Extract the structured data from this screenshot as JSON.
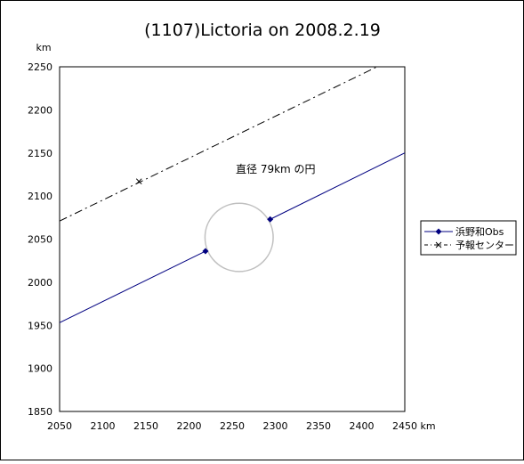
{
  "chart_data": {
    "type": "scatter",
    "title": "(1107)Lictoria on 2008.2.19",
    "xlabel": "km",
    "ylabel": "km",
    "xlim": [
      2050,
      2450
    ],
    "ylim": [
      1850,
      2250
    ],
    "xticks": [
      2050,
      2100,
      2150,
      2200,
      2250,
      2300,
      2350,
      2400,
      2450
    ],
    "yticks": [
      1850,
      1900,
      1950,
      2000,
      2050,
      2100,
      2150,
      2200,
      2250
    ],
    "grid": false,
    "legend_position": "right",
    "annotation": "直径 79km の円",
    "circle": {
      "center": [
        2258,
        2052
      ],
      "diameter": 79,
      "color": "#c0c0c0"
    },
    "series": [
      {
        "name": "浜野和Obs",
        "color": "#000080",
        "line_style": "solid",
        "marker": "diamond",
        "segments": [
          {
            "x": [
              2050,
              2219
            ],
            "y": [
              1953,
              2036
            ]
          },
          {
            "x": [
              2294,
              2450
            ],
            "y": [
              2073,
              2150
            ]
          }
        ],
        "markers": [
          {
            "x": 2219,
            "y": 2036
          },
          {
            "x": 2294,
            "y": 2073
          }
        ]
      },
      {
        "name": "予報センター",
        "color": "#000000",
        "line_style": "dashdot",
        "marker": "x",
        "segments": [
          {
            "x": [
              2050,
              2422
            ],
            "y": [
              2071,
              2252
            ]
          }
        ],
        "markers": [
          {
            "x": 2142,
            "y": 2117
          }
        ]
      }
    ]
  }
}
